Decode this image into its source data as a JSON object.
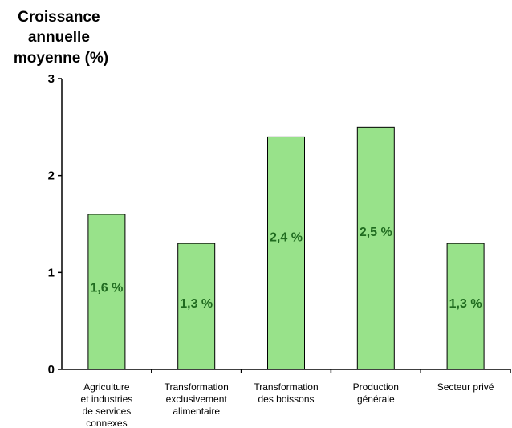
{
  "chart_data": {
    "type": "bar",
    "title": "",
    "ylabel": [
      "Croissance",
      "annuelle",
      "moyenne (%)"
    ],
    "xlabel": "",
    "ylim": [
      0,
      3
    ],
    "yticks": [
      "0",
      "1",
      "2",
      "3"
    ],
    "categories": [
      [
        "Agriculture",
        "et industries",
        "de services",
        "connexes"
      ],
      [
        "Transformation",
        "exclusivement",
        "alimentaire"
      ],
      [
        "Transformation",
        "des boissons"
      ],
      [
        "Production",
        "générale"
      ],
      [
        "Secteur privé"
      ]
    ],
    "values": [
      1.6,
      1.3,
      2.4,
      2.5,
      1.3
    ],
    "data_labels": [
      "1,6 %",
      "1,3 %",
      "2,4 %",
      "2,5 %",
      "1,3 %"
    ],
    "colors": {
      "bar": "#98e28a",
      "label": "#1f6b1f",
      "axis": "#000000"
    },
    "grid": false,
    "legend": "none"
  }
}
